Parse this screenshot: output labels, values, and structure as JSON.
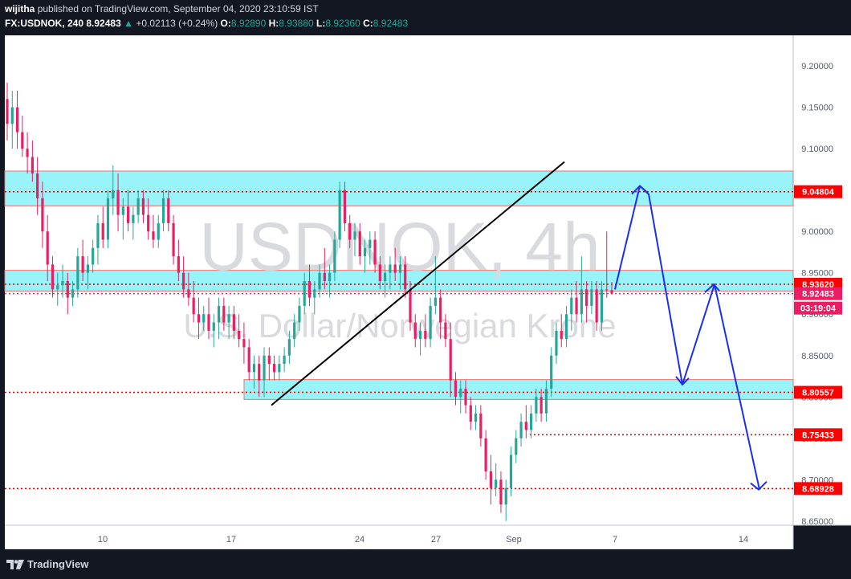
{
  "header": {
    "author": "wijitha",
    "published_text": "published on TradingView.com, September 04, 2020 23:10:59 IST",
    "symbol": "FX:USDNOK, 240",
    "last": "8.92483",
    "change_arrow": "▲",
    "change": "+0.02113 (+0.24%)",
    "o_label": "O:",
    "o_value": "8.92890",
    "h_label": "H:",
    "h_value": "8.93880",
    "l_label": "L:",
    "l_value": "8.92360",
    "c_label": "C:",
    "c_value": "8.92483"
  },
  "watermark": {
    "ticker": "USDNOK, 4h",
    "name": "U.S. Dollar/Norwegian Krone"
  },
  "footer": {
    "brand": "TradingView",
    "logo_icon": "tradingview-logo-icon"
  },
  "colors": {
    "background": "#131722",
    "up": "#26a69a",
    "down": "#ef5350",
    "zone": "#8ef3f8",
    "price_label": "#ff0000",
    "arrow": "#1b2ef0"
  },
  "chart_data": {
    "type": "candlestick",
    "title": "USDNOK, 4h",
    "x_ticks": [
      "10",
      "17",
      "24",
      "27",
      "Sep",
      "7",
      "14"
    ],
    "y_ticks": [
      "9.20000",
      "9.15000",
      "9.10000",
      "9.05000",
      "9.00000",
      "8.95000",
      "8.90000",
      "8.85000",
      "8.80000",
      "8.75000",
      "8.70000",
      "8.65000"
    ],
    "ylim": [
      8.645,
      9.237
    ],
    "grid": false,
    "price_labels": [
      {
        "text": "9.04804",
        "value": 9.04804,
        "color": "#ff0000"
      },
      {
        "text": "8.93620",
        "value": 8.9362,
        "color": "#ff0000"
      },
      {
        "text": "8.92483",
        "value": 8.92483,
        "color": "#e91e63"
      },
      {
        "text": "03:19:04",
        "value": 8.9115,
        "color": "#e91e63"
      },
      {
        "text": "8.80557",
        "value": 8.80557,
        "color": "#ff0000"
      },
      {
        "text": "8.75433",
        "value": 8.75433,
        "color": "#ff0000"
      },
      {
        "text": "8.68928",
        "value": 8.68928,
        "color": "#ff0000"
      }
    ],
    "horizontal_levels": [
      9.04804,
      8.9362,
      8.92483,
      8.80557,
      8.75433,
      8.68928
    ],
    "zones": [
      {
        "from": 9.031,
        "to": 9.073
      },
      {
        "from": 8.928,
        "to": 8.953
      },
      {
        "from": 8.797,
        "to": 8.821
      }
    ],
    "trendline": {
      "from": {
        "x": "Aug 19",
        "y": 8.79
      },
      "to": {
        "x": "Aug 28",
        "y": 9.084
      }
    },
    "projection": [
      9.055,
      8.96,
      8.75,
      8.63
    ],
    "candles": [
      [
        9.16,
        9.18,
        9.11,
        9.13
      ],
      [
        9.13,
        9.17,
        9.1,
        9.15
      ],
      [
        9.15,
        9.17,
        9.1,
        9.12
      ],
      [
        9.12,
        9.14,
        9.09,
        9.1
      ],
      [
        9.1,
        9.12,
        9.07,
        9.09
      ],
      [
        9.09,
        9.11,
        9.06,
        9.07
      ],
      [
        9.07,
        9.09,
        9.02,
        9.04
      ],
      [
        9.04,
        9.06,
        8.98,
        9.0
      ],
      [
        9.0,
        9.02,
        8.94,
        8.96
      ],
      [
        8.96,
        8.97,
        8.92,
        8.93
      ],
      [
        8.93,
        8.95,
        8.91,
        8.935
      ],
      [
        8.935,
        8.96,
        8.92,
        8.94
      ],
      [
        8.94,
        8.95,
        8.9,
        8.92
      ],
      [
        8.92,
        8.94,
        8.91,
        8.93
      ],
      [
        8.93,
        8.98,
        8.92,
        8.97
      ],
      [
        8.97,
        8.99,
        8.94,
        8.95
      ],
      [
        8.95,
        8.97,
        8.93,
        8.96
      ],
      [
        8.96,
        8.99,
        8.95,
        8.98
      ],
      [
        8.98,
        9.02,
        8.96,
        9.01
      ],
      [
        9.01,
        9.03,
        8.98,
        8.99
      ],
      [
        8.99,
        9.05,
        8.98,
        9.04
      ],
      [
        9.04,
        9.08,
        9.02,
        9.05
      ],
      [
        9.05,
        9.07,
        9.0,
        9.02
      ],
      [
        9.02,
        9.04,
        8.99,
        9.03
      ],
      [
        9.03,
        9.05,
        9.0,
        9.01
      ],
      [
        9.01,
        9.03,
        8.99,
        9.02
      ],
      [
        9.02,
        9.05,
        9.01,
        9.04
      ],
      [
        9.04,
        9.05,
        9.01,
        9.02
      ],
      [
        9.02,
        9.04,
        8.99,
        9.0
      ],
      [
        9.0,
        9.02,
        8.98,
        8.99
      ],
      [
        8.99,
        9.02,
        8.98,
        9.01
      ],
      [
        9.01,
        9.05,
        9.0,
        9.04
      ],
      [
        9.04,
        9.05,
        9.0,
        9.01
      ],
      [
        9.01,
        9.02,
        8.96,
        8.97
      ],
      [
        8.97,
        8.99,
        8.94,
        8.95
      ],
      [
        8.95,
        8.97,
        8.92,
        8.93
      ],
      [
        8.93,
        8.95,
        8.91,
        8.92
      ],
      [
        8.92,
        8.94,
        8.89,
        8.9
      ],
      [
        8.9,
        8.92,
        8.87,
        8.89
      ],
      [
        8.89,
        8.91,
        8.88,
        8.9
      ],
      [
        8.9,
        8.92,
        8.87,
        8.88
      ],
      [
        8.88,
        8.9,
        8.86,
        8.89
      ],
      [
        8.89,
        8.92,
        8.87,
        8.91
      ],
      [
        8.91,
        8.92,
        8.88,
        8.89
      ],
      [
        8.89,
        8.91,
        8.87,
        8.9
      ],
      [
        8.9,
        8.91,
        8.87,
        8.88
      ],
      [
        8.88,
        8.9,
        8.86,
        8.87
      ],
      [
        8.87,
        8.89,
        8.84,
        8.86
      ],
      [
        8.86,
        8.87,
        8.82,
        8.83
      ],
      [
        8.83,
        8.85,
        8.81,
        8.84
      ],
      [
        8.84,
        8.85,
        8.8,
        8.82
      ],
      [
        8.82,
        8.86,
        8.8,
        8.85
      ],
      [
        8.85,
        8.86,
        8.82,
        8.84
      ],
      [
        8.84,
        8.85,
        8.82,
        8.83
      ],
      [
        8.83,
        8.85,
        8.82,
        8.84
      ],
      [
        8.84,
        8.86,
        8.83,
        8.85
      ],
      [
        8.85,
        8.88,
        8.84,
        8.87
      ],
      [
        8.87,
        8.9,
        8.86,
        8.89
      ],
      [
        8.89,
        8.92,
        8.88,
        8.91
      ],
      [
        8.91,
        8.95,
        8.9,
        8.94
      ],
      [
        8.94,
        8.96,
        8.91,
        8.92
      ],
      [
        8.92,
        8.94,
        8.9,
        8.93
      ],
      [
        8.93,
        8.96,
        8.92,
        8.95
      ],
      [
        8.95,
        8.98,
        8.93,
        8.94
      ],
      [
        8.94,
        8.96,
        8.92,
        8.95
      ],
      [
        8.95,
        9.0,
        8.94,
        8.99
      ],
      [
        8.99,
        9.06,
        8.98,
        9.05
      ],
      [
        9.05,
        9.06,
        9.0,
        9.01
      ],
      [
        9.01,
        9.02,
        8.98,
        8.99
      ],
      [
        8.99,
        9.01,
        8.97,
        9.0
      ],
      [
        9.0,
        9.01,
        8.96,
        8.97
      ],
      [
        8.97,
        8.99,
        8.95,
        8.98
      ],
      [
        8.98,
        9.0,
        8.96,
        8.99
      ],
      [
        8.99,
        9.0,
        8.95,
        8.96
      ],
      [
        8.96,
        8.97,
        8.93,
        8.94
      ],
      [
        8.94,
        8.96,
        8.92,
        8.95
      ],
      [
        8.95,
        8.97,
        8.93,
        8.96
      ],
      [
        8.96,
        8.98,
        8.94,
        8.95
      ],
      [
        8.95,
        8.97,
        8.93,
        8.96
      ],
      [
        8.96,
        8.97,
        8.92,
        8.93
      ],
      [
        8.93,
        8.94,
        8.88,
        8.89
      ],
      [
        8.89,
        8.9,
        8.86,
        8.87
      ],
      [
        8.87,
        8.89,
        8.85,
        8.88
      ],
      [
        8.88,
        8.9,
        8.86,
        8.87
      ],
      [
        8.87,
        8.92,
        8.86,
        8.91
      ],
      [
        8.91,
        8.97,
        8.9,
        8.92
      ],
      [
        8.92,
        8.93,
        8.87,
        8.89
      ],
      [
        8.89,
        8.9,
        8.86,
        8.87
      ],
      [
        8.87,
        8.89,
        8.8,
        8.82
      ],
      [
        8.82,
        8.83,
        8.79,
        8.8
      ],
      [
        8.8,
        8.82,
        8.78,
        8.81
      ],
      [
        8.81,
        8.82,
        8.78,
        8.79
      ],
      [
        8.79,
        8.8,
        8.76,
        8.77
      ],
      [
        8.77,
        8.79,
        8.76,
        8.78
      ],
      [
        8.78,
        8.79,
        8.74,
        8.75
      ],
      [
        8.75,
        8.76,
        8.7,
        8.71
      ],
      [
        8.71,
        8.73,
        8.67,
        8.69
      ],
      [
        8.69,
        8.72,
        8.68,
        8.7
      ],
      [
        8.7,
        8.71,
        8.66,
        8.67
      ],
      [
        8.67,
        8.7,
        8.65,
        8.69
      ],
      [
        8.69,
        8.74,
        8.68,
        8.73
      ],
      [
        8.73,
        8.76,
        8.72,
        8.75
      ],
      [
        8.75,
        8.78,
        8.74,
        8.77
      ],
      [
        8.77,
        8.79,
        8.75,
        8.76
      ],
      [
        8.76,
        8.79,
        8.75,
        8.78
      ],
      [
        8.78,
        8.81,
        8.77,
        8.8
      ],
      [
        8.8,
        8.81,
        8.77,
        8.78
      ],
      [
        8.78,
        8.82,
        8.77,
        8.81
      ],
      [
        8.81,
        8.86,
        8.8,
        8.85
      ],
      [
        8.85,
        8.89,
        8.84,
        8.88
      ],
      [
        8.88,
        8.9,
        8.86,
        8.87
      ],
      [
        8.87,
        8.91,
        8.86,
        8.9
      ],
      [
        8.9,
        8.93,
        8.88,
        8.92
      ],
      [
        8.92,
        8.94,
        8.89,
        8.9
      ],
      [
        8.9,
        8.97,
        8.89,
        8.93
      ],
      [
        8.93,
        8.94,
        8.89,
        8.91
      ],
      [
        8.91,
        8.94,
        8.9,
        8.93
      ],
      [
        8.93,
        8.94,
        8.88,
        8.89
      ],
      [
        8.89,
        8.94,
        8.88,
        8.93
      ],
      [
        8.93,
        9.0,
        8.92,
        8.929
      ],
      [
        8.929,
        8.939,
        8.924,
        8.925
      ]
    ]
  }
}
